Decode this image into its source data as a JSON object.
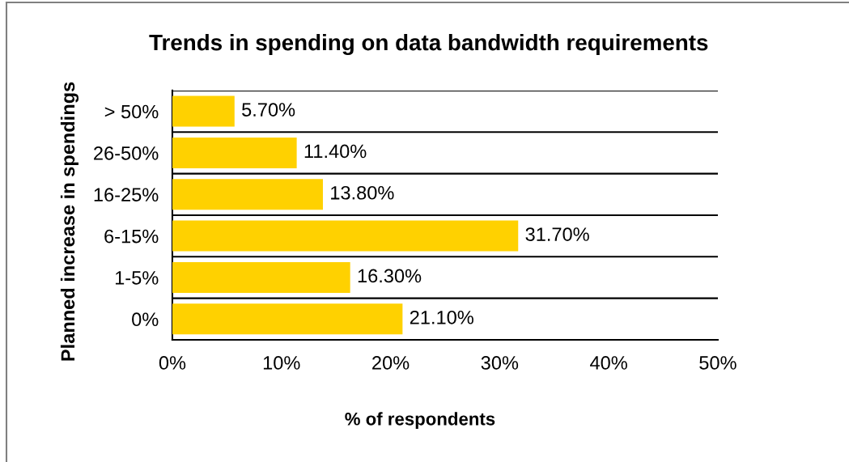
{
  "chart_data": {
    "type": "bar",
    "orientation": "horizontal",
    "title": "Trends in spending on data bandwidth requirements",
    "xlabel": "% of respondents",
    "ylabel": "Planned increase in spendings",
    "categories": [
      "> 50%",
      "26-50%",
      "16-25%",
      "6-15%",
      "1-5%",
      "0%"
    ],
    "values": [
      5.7,
      11.4,
      13.8,
      31.7,
      16.3,
      21.1
    ],
    "value_labels": [
      "5.70%",
      "11.40%",
      "13.80%",
      "31.70%",
      "16.30%",
      "21.10%"
    ],
    "color": "#ffd100",
    "xlim": [
      0,
      50
    ],
    "xticks": [
      {
        "value": 0,
        "label": "0%"
      },
      {
        "value": 10,
        "label": "10%"
      },
      {
        "value": 20,
        "label": "20%"
      },
      {
        "value": 30,
        "label": "30%"
      },
      {
        "value": 40,
        "label": "40%"
      },
      {
        "value": 50,
        "label": "50%"
      }
    ],
    "grid": "y"
  }
}
